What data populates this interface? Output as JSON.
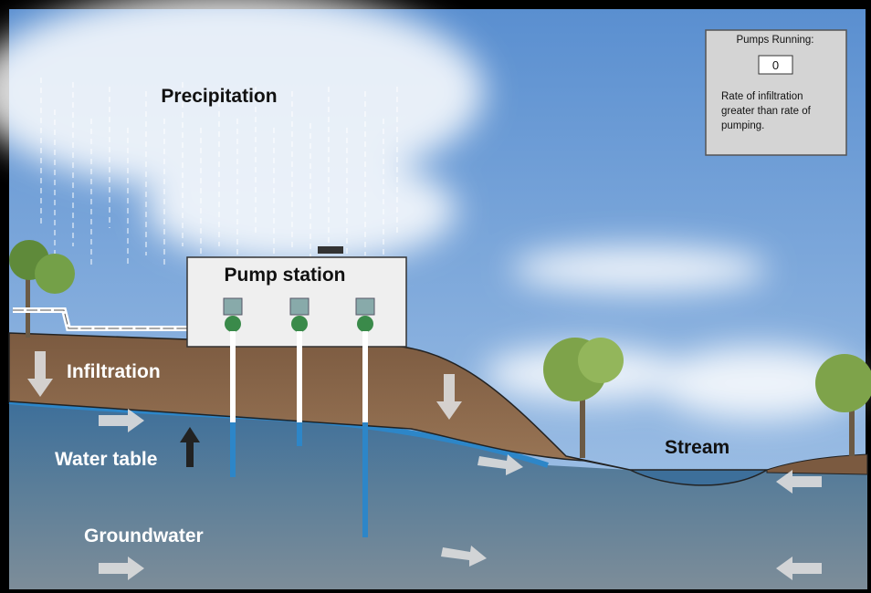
{
  "labels": {
    "precipitation": "Precipitation",
    "pump_station": "Pump station",
    "infiltration": "Infiltration",
    "water_table": "Water table",
    "groundwater": "Groundwater",
    "stream": "Stream"
  },
  "panel": {
    "title": "Pumps Running:",
    "pumps_running": "0",
    "status_lines": [
      "Rate of infiltration",
      "greater than rate of",
      "pumping."
    ]
  }
}
